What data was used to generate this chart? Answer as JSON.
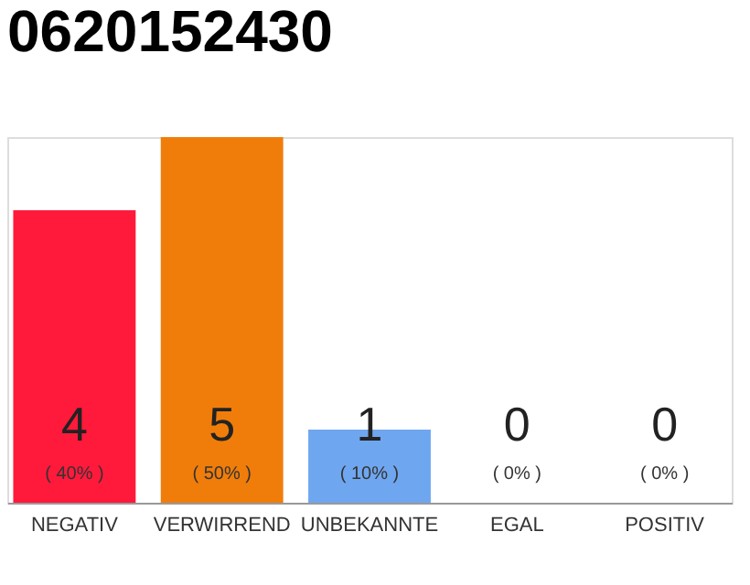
{
  "chart_data": {
    "type": "bar",
    "title": "0620152430",
    "categories": [
      "NEGATIV",
      "VERWIRREND",
      "UNBEKANNTE",
      "EGAL",
      "POSITIV"
    ],
    "values": [
      4,
      5,
      1,
      0,
      0
    ],
    "colors": [
      "#ff1a3c",
      "#f07d0a",
      "#6fa6f0",
      "#cccccc",
      "#cccccc"
    ],
    "data_labels": true,
    "annotations": [
      "( 40% )",
      "( 50% )",
      "( 10% )",
      "( 0% )",
      "( 0% )"
    ],
    "grid": false
  }
}
